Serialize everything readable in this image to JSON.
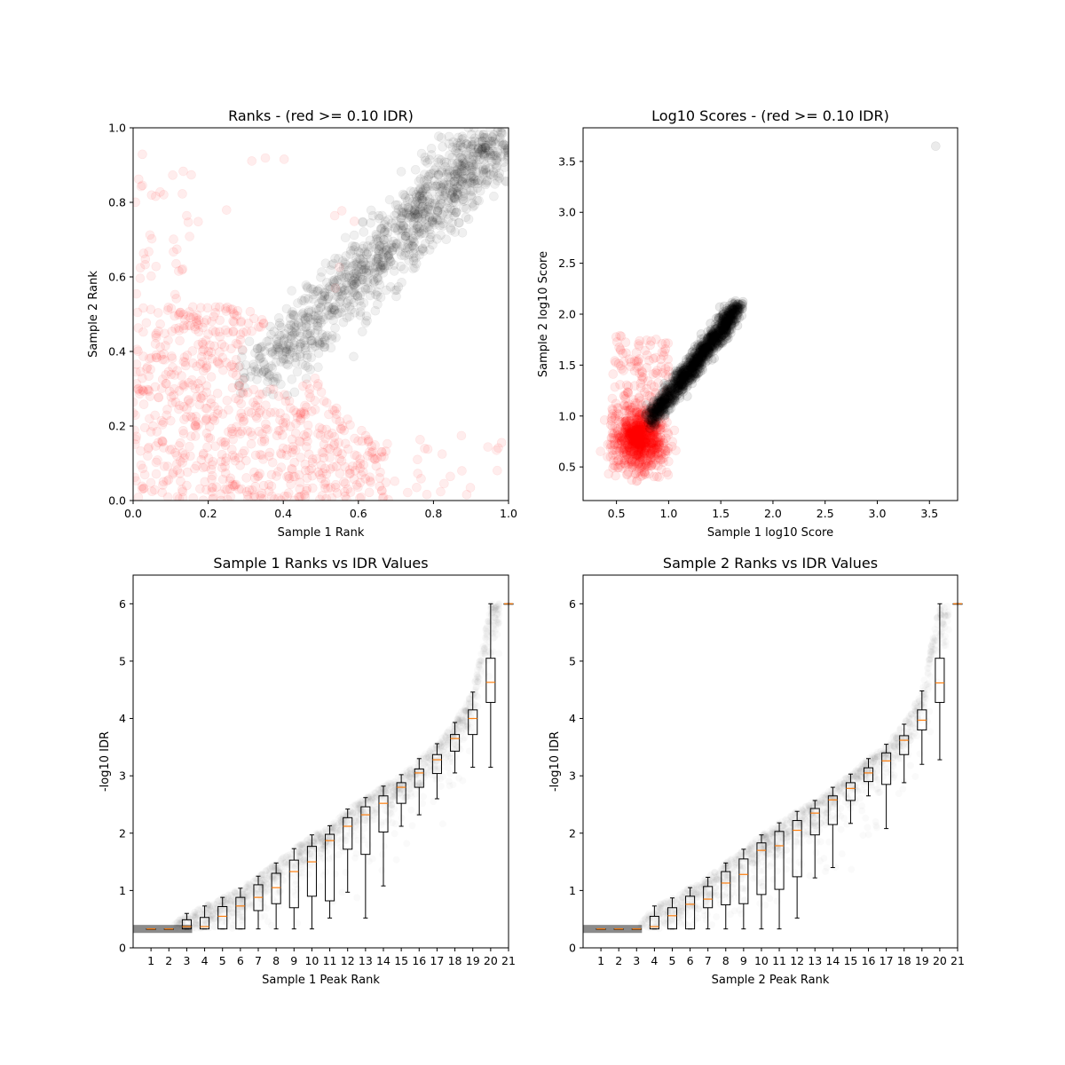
{
  "chart_data": [
    {
      "type": "scatter",
      "title": "Ranks - (red >= 0.10 IDR)",
      "xlabel": "Sample 1 Rank",
      "ylabel": "Sample 2 Rank",
      "xlim": [
        0,
        1
      ],
      "ylim": [
        0,
        1
      ],
      "xticks": [
        "0.0",
        "0.2",
        "0.4",
        "0.6",
        "0.8",
        "1.0"
      ],
      "yticks": [
        "0.0",
        "0.2",
        "0.4",
        "0.6",
        "0.8",
        "1.0"
      ],
      "grid": false,
      "colors": {
        "pass": "#000000",
        "fail": "#ff0000"
      },
      "point_groups": [
        {
          "group": "IDR < 0.10 (black)",
          "count": 1200,
          "x_range": [
            0.3,
            1.0
          ],
          "y_range": [
            0.3,
            1.0
          ],
          "trend": "along diagonal, spread about 0.07"
        },
        {
          "group": "IDR >= 0.10 (red)",
          "count": 900,
          "x_range": [
            0.0,
            0.7
          ],
          "y_range": [
            0.0,
            0.95
          ],
          "trend": "dense in lower-left, sparse outliers along axes"
        }
      ]
    },
    {
      "type": "scatter",
      "title": "Log10 Scores - (red >= 0.10 IDR)",
      "xlabel": "Sample 1 log10 Score",
      "ylabel": "Sample 2 log10 Score",
      "xlim": [
        0.18,
        3.77
      ],
      "ylim": [
        0.17,
        3.83
      ],
      "xticks": [
        "0.5",
        "1.0",
        "1.5",
        "2.0",
        "2.5",
        "3.0",
        "3.5"
      ],
      "yticks": [
        "0.5",
        "1.0",
        "1.5",
        "2.0",
        "2.5",
        "3.0",
        "3.5"
      ],
      "grid": false,
      "colors": {
        "pass": "#000000",
        "fail": "#ff0000"
      },
      "point_groups": [
        {
          "group": "IDR < 0.10 (black)",
          "count": 1100,
          "x_range": [
            0.8,
            1.8
          ],
          "y_range": [
            0.9,
            2.2
          ],
          "trend": "tight linear band"
        },
        {
          "group": "IDR >= 0.10 (red)",
          "count": 1000,
          "x_range": [
            0.35,
            1.7
          ],
          "y_range": [
            0.35,
            2.05
          ],
          "trend": "dense cluster near (0.75, 0.75)"
        }
      ],
      "outliers": [
        {
          "x": 3.56,
          "y": 3.65
        }
      ]
    },
    {
      "type": "box",
      "title": "Sample 1 Ranks vs IDR Values",
      "xlabel": "Sample 1 Peak Rank",
      "ylabel": "-log10 IDR",
      "xlim": [
        0,
        21
      ],
      "ylim": [
        0,
        6.5
      ],
      "xticks": [
        "1",
        "2",
        "3",
        "4",
        "5",
        "6",
        "7",
        "8",
        "9",
        "10",
        "11",
        "12",
        "13",
        "14",
        "15",
        "16",
        "17",
        "18",
        "19",
        "20",
        "21"
      ],
      "yticks": [
        "0",
        "1",
        "2",
        "3",
        "4",
        "5",
        "6"
      ],
      "median_color": "#ff7f0e",
      "boxes": [
        {
          "pos": 1,
          "wlo": 0.33,
          "q1": 0.33,
          "med": 0.33,
          "q3": 0.33,
          "whi": 0.33
        },
        {
          "pos": 2,
          "wlo": 0.33,
          "q1": 0.33,
          "med": 0.33,
          "q3": 0.33,
          "whi": 0.33
        },
        {
          "pos": 3,
          "wlo": 0.33,
          "q1": 0.33,
          "med": 0.37,
          "q3": 0.49,
          "whi": 0.6
        },
        {
          "pos": 4,
          "wlo": 0.33,
          "q1": 0.33,
          "med": 0.37,
          "q3": 0.53,
          "whi": 0.73
        },
        {
          "pos": 5,
          "wlo": 0.33,
          "q1": 0.33,
          "med": 0.55,
          "q3": 0.72,
          "whi": 0.88
        },
        {
          "pos": 6,
          "wlo": 0.33,
          "q1": 0.33,
          "med": 0.73,
          "q3": 0.88,
          "whi": 1.04
        },
        {
          "pos": 7,
          "wlo": 0.33,
          "q1": 0.65,
          "med": 0.88,
          "q3": 1.1,
          "whi": 1.25
        },
        {
          "pos": 8,
          "wlo": 0.33,
          "q1": 0.77,
          "med": 1.05,
          "q3": 1.3,
          "whi": 1.48
        },
        {
          "pos": 9,
          "wlo": 0.33,
          "q1": 0.7,
          "med": 1.33,
          "q3": 1.53,
          "whi": 1.73
        },
        {
          "pos": 10,
          "wlo": 0.33,
          "q1": 0.9,
          "med": 1.5,
          "q3": 1.77,
          "whi": 1.97
        },
        {
          "pos": 11,
          "wlo": 0.52,
          "q1": 0.82,
          "med": 1.87,
          "q3": 1.98,
          "whi": 2.13
        },
        {
          "pos": 12,
          "wlo": 0.97,
          "q1": 1.72,
          "med": 2.12,
          "q3": 2.27,
          "whi": 2.42
        },
        {
          "pos": 13,
          "wlo": 0.52,
          "q1": 1.63,
          "med": 2.32,
          "q3": 2.46,
          "whi": 2.62
        },
        {
          "pos": 14,
          "wlo": 1.08,
          "q1": 2.02,
          "med": 2.52,
          "q3": 2.65,
          "whi": 2.82
        },
        {
          "pos": 15,
          "wlo": 2.12,
          "q1": 2.52,
          "med": 2.8,
          "q3": 2.88,
          "whi": 3.02
        },
        {
          "pos": 16,
          "wlo": 2.32,
          "q1": 2.8,
          "med": 3.05,
          "q3": 3.12,
          "whi": 3.3
        },
        {
          "pos": 17,
          "wlo": 2.6,
          "q1": 3.04,
          "med": 3.28,
          "q3": 3.37,
          "whi": 3.56
        },
        {
          "pos": 18,
          "wlo": 3.05,
          "q1": 3.43,
          "med": 3.65,
          "q3": 3.72,
          "whi": 3.93
        },
        {
          "pos": 19,
          "wlo": 3.15,
          "q1": 3.72,
          "med": 4.0,
          "q3": 4.15,
          "whi": 4.46
        },
        {
          "pos": 20,
          "wlo": 3.15,
          "q1": 4.28,
          "med": 4.63,
          "q3": 5.05,
          "whi": 6.0
        },
        {
          "pos": 21,
          "wlo": 6.0,
          "q1": 6.0,
          "med": 6.0,
          "q3": 6.0,
          "whi": 6.0
        }
      ]
    },
    {
      "type": "box",
      "title": "Sample 2 Ranks vs IDR Values",
      "xlabel": "Sample 2 Peak Rank",
      "ylabel": "-log10 IDR",
      "xlim": [
        0,
        21
      ],
      "ylim": [
        0,
        6.5
      ],
      "xticks": [
        "1",
        "2",
        "3",
        "4",
        "5",
        "6",
        "7",
        "8",
        "9",
        "10",
        "11",
        "12",
        "13",
        "14",
        "15",
        "16",
        "17",
        "18",
        "19",
        "20",
        "21"
      ],
      "yticks": [
        "0",
        "1",
        "2",
        "3",
        "4",
        "5",
        "6"
      ],
      "median_color": "#ff7f0e",
      "boxes": [
        {
          "pos": 1,
          "wlo": 0.33,
          "q1": 0.33,
          "med": 0.33,
          "q3": 0.33,
          "whi": 0.33
        },
        {
          "pos": 2,
          "wlo": 0.33,
          "q1": 0.33,
          "med": 0.33,
          "q3": 0.33,
          "whi": 0.33
        },
        {
          "pos": 3,
          "wlo": 0.33,
          "q1": 0.33,
          "med": 0.33,
          "q3": 0.33,
          "whi": 0.33
        },
        {
          "pos": 4,
          "wlo": 0.33,
          "q1": 0.33,
          "med": 0.37,
          "q3": 0.55,
          "whi": 0.73
        },
        {
          "pos": 5,
          "wlo": 0.33,
          "q1": 0.33,
          "med": 0.56,
          "q3": 0.7,
          "whi": 0.87
        },
        {
          "pos": 6,
          "wlo": 0.33,
          "q1": 0.33,
          "med": 0.76,
          "q3": 0.9,
          "whi": 1.05
        },
        {
          "pos": 7,
          "wlo": 0.33,
          "q1": 0.7,
          "med": 0.85,
          "q3": 1.07,
          "whi": 1.23
        },
        {
          "pos": 8,
          "wlo": 0.33,
          "q1": 0.75,
          "med": 1.13,
          "q3": 1.33,
          "whi": 1.48
        },
        {
          "pos": 9,
          "wlo": 0.33,
          "q1": 0.77,
          "med": 1.28,
          "q3": 1.55,
          "whi": 1.72
        },
        {
          "pos": 10,
          "wlo": 0.33,
          "q1": 0.93,
          "med": 1.7,
          "q3": 1.83,
          "whi": 1.97
        },
        {
          "pos": 11,
          "wlo": 0.33,
          "q1": 1.02,
          "med": 1.78,
          "q3": 2.03,
          "whi": 2.18
        },
        {
          "pos": 12,
          "wlo": 0.52,
          "q1": 1.24,
          "med": 2.05,
          "q3": 2.22,
          "whi": 2.38
        },
        {
          "pos": 13,
          "wlo": 1.22,
          "q1": 1.97,
          "med": 2.35,
          "q3": 2.43,
          "whi": 2.57
        },
        {
          "pos": 14,
          "wlo": 1.4,
          "q1": 2.15,
          "med": 2.58,
          "q3": 2.65,
          "whi": 2.8
        },
        {
          "pos": 15,
          "wlo": 2.17,
          "q1": 2.57,
          "med": 2.78,
          "q3": 2.88,
          "whi": 3.03
        },
        {
          "pos": 16,
          "wlo": 2.65,
          "q1": 2.9,
          "med": 3.05,
          "q3": 3.14,
          "whi": 3.3
        },
        {
          "pos": 17,
          "wlo": 2.08,
          "q1": 2.85,
          "med": 3.26,
          "q3": 3.4,
          "whi": 3.55
        },
        {
          "pos": 18,
          "wlo": 2.88,
          "q1": 3.37,
          "med": 3.62,
          "q3": 3.7,
          "whi": 3.9
        },
        {
          "pos": 19,
          "wlo": 3.2,
          "q1": 3.8,
          "med": 3.97,
          "q3": 4.15,
          "whi": 4.48
        },
        {
          "pos": 20,
          "wlo": 3.28,
          "q1": 4.28,
          "med": 4.62,
          "q3": 5.05,
          "whi": 6.0
        },
        {
          "pos": 21,
          "wlo": 6.0,
          "q1": 6.0,
          "med": 6.0,
          "q3": 6.0,
          "whi": 6.0
        }
      ]
    }
  ]
}
